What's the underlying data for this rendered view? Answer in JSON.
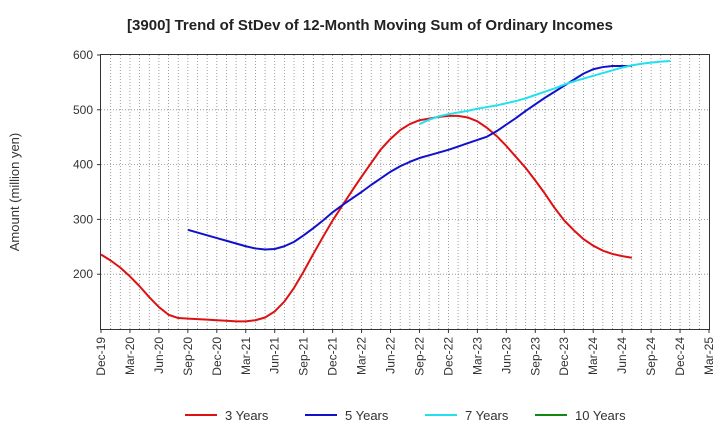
{
  "chart_data": {
    "type": "line",
    "title": "[3900]  Trend of StDev of 12-Month Moving Sum of Ordinary Incomes",
    "xlabel": "",
    "ylabel": "Amount (million yen)",
    "ylim": [
      100,
      600
    ],
    "yticks": [
      200,
      300,
      400,
      500,
      600
    ],
    "x_tick_labels": [
      "Dec-19",
      "Mar-20",
      "Jun-20",
      "Sep-20",
      "Dec-20",
      "Mar-21",
      "Jun-21",
      "Sep-21",
      "Dec-21",
      "Mar-22",
      "Jun-22",
      "Sep-22",
      "Dec-22",
      "Mar-23",
      "Jun-23",
      "Sep-23",
      "Dec-23",
      "Mar-24",
      "Jun-24",
      "Sep-24",
      "Dec-24",
      "Mar-25"
    ],
    "grid": true,
    "legend_position": "bottom",
    "series": [
      {
        "name": "3 Years",
        "color": "#dd1111",
        "start_index": 0,
        "values": [
          236,
          225,
          212,
          196,
          178,
          158,
          140,
          126,
          120,
          119,
          118,
          117,
          116,
          115,
          114,
          114,
          116,
          121,
          132,
          150,
          175,
          205,
          237,
          268,
          298,
          325,
          352,
          378,
          403,
          428,
          447,
          463,
          474,
          481,
          484,
          487,
          489,
          489,
          486,
          479,
          467,
          452,
          434,
          414,
          394,
          371,
          347,
          321,
          298,
          280,
          264,
          252,
          243,
          237,
          233,
          230
        ]
      },
      {
        "name": "5 Years",
        "color": "#1111cc",
        "start_index": 9,
        "values": [
          281,
          276,
          271,
          266,
          261,
          256,
          251,
          247,
          245,
          246,
          251,
          259,
          271,
          284,
          298,
          313,
          326,
          338,
          350,
          363,
          375,
          387,
          397,
          405,
          412,
          417,
          422,
          427,
          433,
          439,
          445,
          451,
          461,
          473,
          485,
          498,
          510,
          522,
          533,
          544,
          555,
          566,
          574,
          578,
          580,
          580,
          580
        ]
      },
      {
        "name": "7 Years",
        "color": "#22e0ee",
        "start_index": 33,
        "values": [
          474,
          482,
          488,
          492,
          495,
          498,
          502,
          505,
          508,
          512,
          516,
          521,
          527,
          533,
          539,
          546,
          552,
          557,
          562,
          567,
          572,
          577,
          581,
          584,
          586,
          588,
          589
        ]
      },
      {
        "name": "10 Years",
        "color": "#118811",
        "start_index": 0,
        "values": []
      }
    ]
  }
}
